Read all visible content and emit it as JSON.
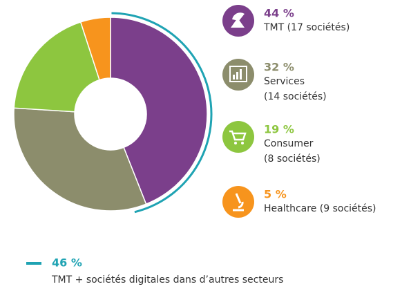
{
  "chart_data": {
    "type": "donut",
    "categories": [
      "TMT",
      "Services",
      "Consumer",
      "Healthcare"
    ],
    "values": [
      44,
      32,
      19,
      5
    ],
    "value_labels": [
      "44 %",
      "32 %",
      "19 %",
      "5 %"
    ],
    "labels": [
      [
        "TMT (17 sociétés)"
      ],
      [
        "Services",
        "(14 sociétés)"
      ],
      [
        "Consumer",
        "(8 sociétés)"
      ],
      [
        "Healthcare (9 sociétés)"
      ]
    ],
    "colors": [
      "#7b3f8b",
      "#8c8d6c",
      "#8dc63f",
      "#f7941d"
    ],
    "highlight": {
      "value": 46,
      "value_label": "46 %",
      "label": "TMT + sociétés digitales dans d’autres secteurs",
      "color": "#1fa3b3"
    }
  }
}
